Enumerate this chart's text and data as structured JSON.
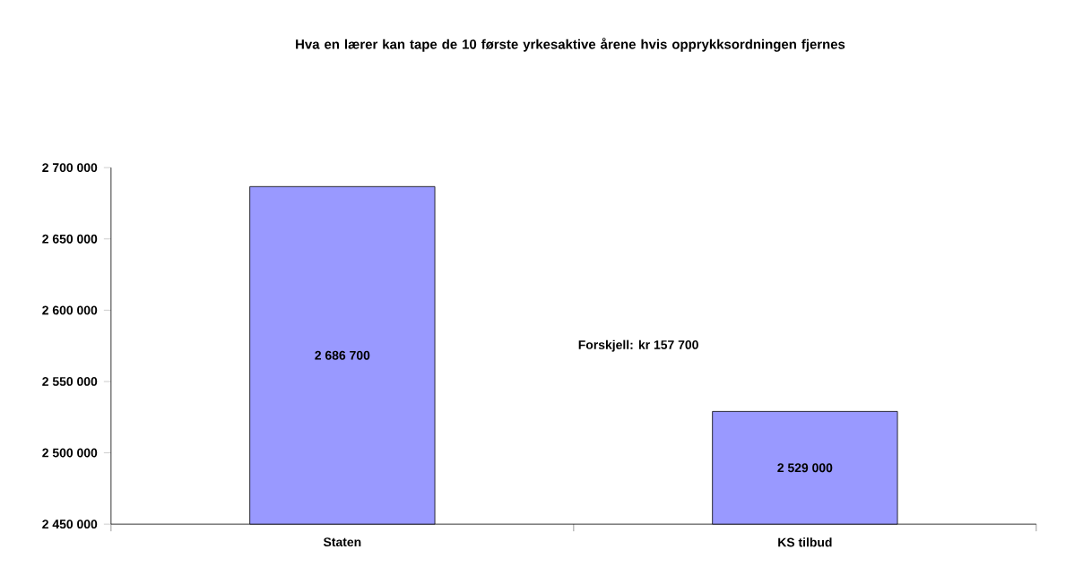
{
  "chart_data": {
    "type": "bar",
    "title": "Hva en lærer kan tape de 10 første yrkesaktive årene hvis opprykksordningen fjernes",
    "categories": [
      "Staten",
      "KS tilbud"
    ],
    "values": [
      2686700,
      2529000
    ],
    "value_labels": [
      "2 686 700",
      "2 529 000"
    ],
    "color": "#9999ff",
    "ylim": [
      2450000,
      2700000
    ],
    "yticks": [
      {
        "value": 2450000,
        "label": "2 450 000"
      },
      {
        "value": 2500000,
        "label": "2 500 000"
      },
      {
        "value": 2550000,
        "label": "2 550 000"
      },
      {
        "value": 2600000,
        "label": "2 600 000"
      },
      {
        "value": 2650000,
        "label": "2 650 000"
      },
      {
        "value": 2700000,
        "label": "2 700 000"
      }
    ],
    "annotations": [
      "Forskjell: kr 157 700"
    ]
  }
}
